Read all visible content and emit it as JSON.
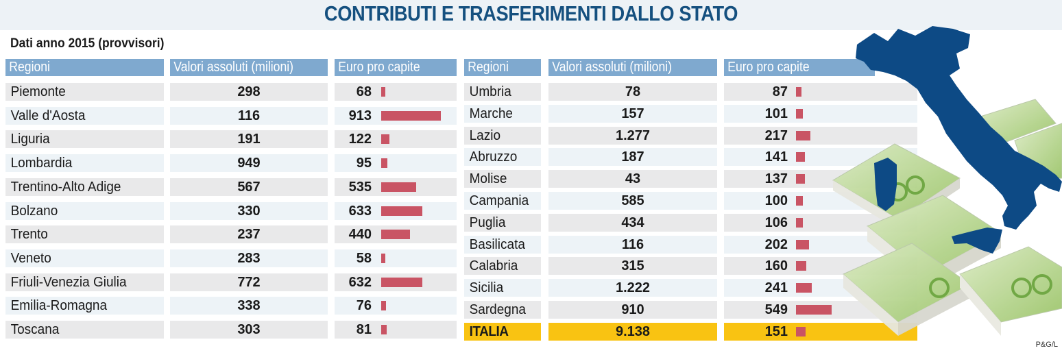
{
  "title": "CONTRIBUTI E TRASFERIMENTI DALLO STATO",
  "subtitle": "Dati anno 2015 (provvisori)",
  "credit": "P&G/L",
  "colors": {
    "title": "#15507f",
    "header_bg": "#7fa9cf",
    "bar": "#c95464",
    "italia_highlight": "#f9c312",
    "map": "#0d4a85"
  },
  "headers": {
    "region": "Regioni",
    "absolute": "Valori assoluti (milioni)",
    "per_capita": "Euro pro capite"
  },
  "chart_data": {
    "type": "table",
    "title": "CONTRIBUTI E TRASFERIMENTI DALLO STATO",
    "subtitle": "Dati anno 2015 (provvisori)",
    "columns": [
      "Regioni",
      "Valori assoluti (milioni)",
      "Euro pro capite"
    ],
    "bar_column": "Euro pro capite",
    "bar_max": 913,
    "left_table": [
      {
        "region": "Piemonte",
        "absolute": "298",
        "per_capita": 68
      },
      {
        "region": "Valle d'Aosta",
        "absolute": "116",
        "per_capita": 913
      },
      {
        "region": "Liguria",
        "absolute": "191",
        "per_capita": 122
      },
      {
        "region": "Lombardia",
        "absolute": "949",
        "per_capita": 95
      },
      {
        "region": "Trentino-Alto Adige",
        "absolute": "567",
        "per_capita": 535
      },
      {
        "region": "Bolzano",
        "absolute": "330",
        "per_capita": 633
      },
      {
        "region": "Trento",
        "absolute": "237",
        "per_capita": 440
      },
      {
        "region": "Veneto",
        "absolute": "283",
        "per_capita": 58
      },
      {
        "region": "Friuli-Venezia Giulia",
        "absolute": "772",
        "per_capita": 632
      },
      {
        "region": "Emilia-Romagna",
        "absolute": "338",
        "per_capita": 76
      },
      {
        "region": "Toscana",
        "absolute": "303",
        "per_capita": 81
      }
    ],
    "right_table": [
      {
        "region": "Umbria",
        "absolute": "78",
        "per_capita": 87
      },
      {
        "region": "Marche",
        "absolute": "157",
        "per_capita": 101
      },
      {
        "region": "Lazio",
        "absolute": "1.277",
        "per_capita": 217
      },
      {
        "region": "Abruzzo",
        "absolute": "187",
        "per_capita": 141
      },
      {
        "region": "Molise",
        "absolute": "43",
        "per_capita": 137
      },
      {
        "region": "Campania",
        "absolute": "585",
        "per_capita": 100
      },
      {
        "region": "Puglia",
        "absolute": "434",
        "per_capita": 106
      },
      {
        "region": "Basilicata",
        "absolute": "116",
        "per_capita": 202
      },
      {
        "region": "Calabria",
        "absolute": "315",
        "per_capita": 160
      },
      {
        "region": "Sicilia",
        "absolute": "1.222",
        "per_capita": 241
      },
      {
        "region": "Sardegna",
        "absolute": "910",
        "per_capita": 549
      },
      {
        "region": "ITALIA",
        "absolute": "9.138",
        "per_capita": 151,
        "total": true
      }
    ]
  }
}
